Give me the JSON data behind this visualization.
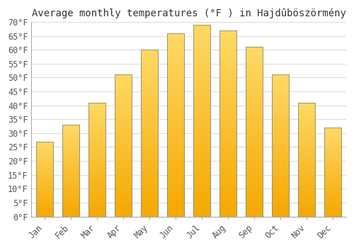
{
  "title": "Average monthly temperatures (°F ) in Hajdûböszörmény",
  "months": [
    "Jan",
    "Feb",
    "Mar",
    "Apr",
    "May",
    "Jun",
    "Jul",
    "Aug",
    "Sep",
    "Oct",
    "Nov",
    "Dec"
  ],
  "values": [
    27,
    33,
    41,
    51,
    60,
    66,
    69,
    67,
    61,
    51,
    41,
    32
  ],
  "bar_color_bottom": "#F5A800",
  "bar_color_top": "#FFD966",
  "bar_edge_color": "#888888",
  "ylim": [
    0,
    70
  ],
  "ytick_step": 5,
  "background_color": "#ffffff",
  "grid_color": "#dddddd",
  "title_fontsize": 10,
  "tick_fontsize": 8.5,
  "font_family": "monospace"
}
